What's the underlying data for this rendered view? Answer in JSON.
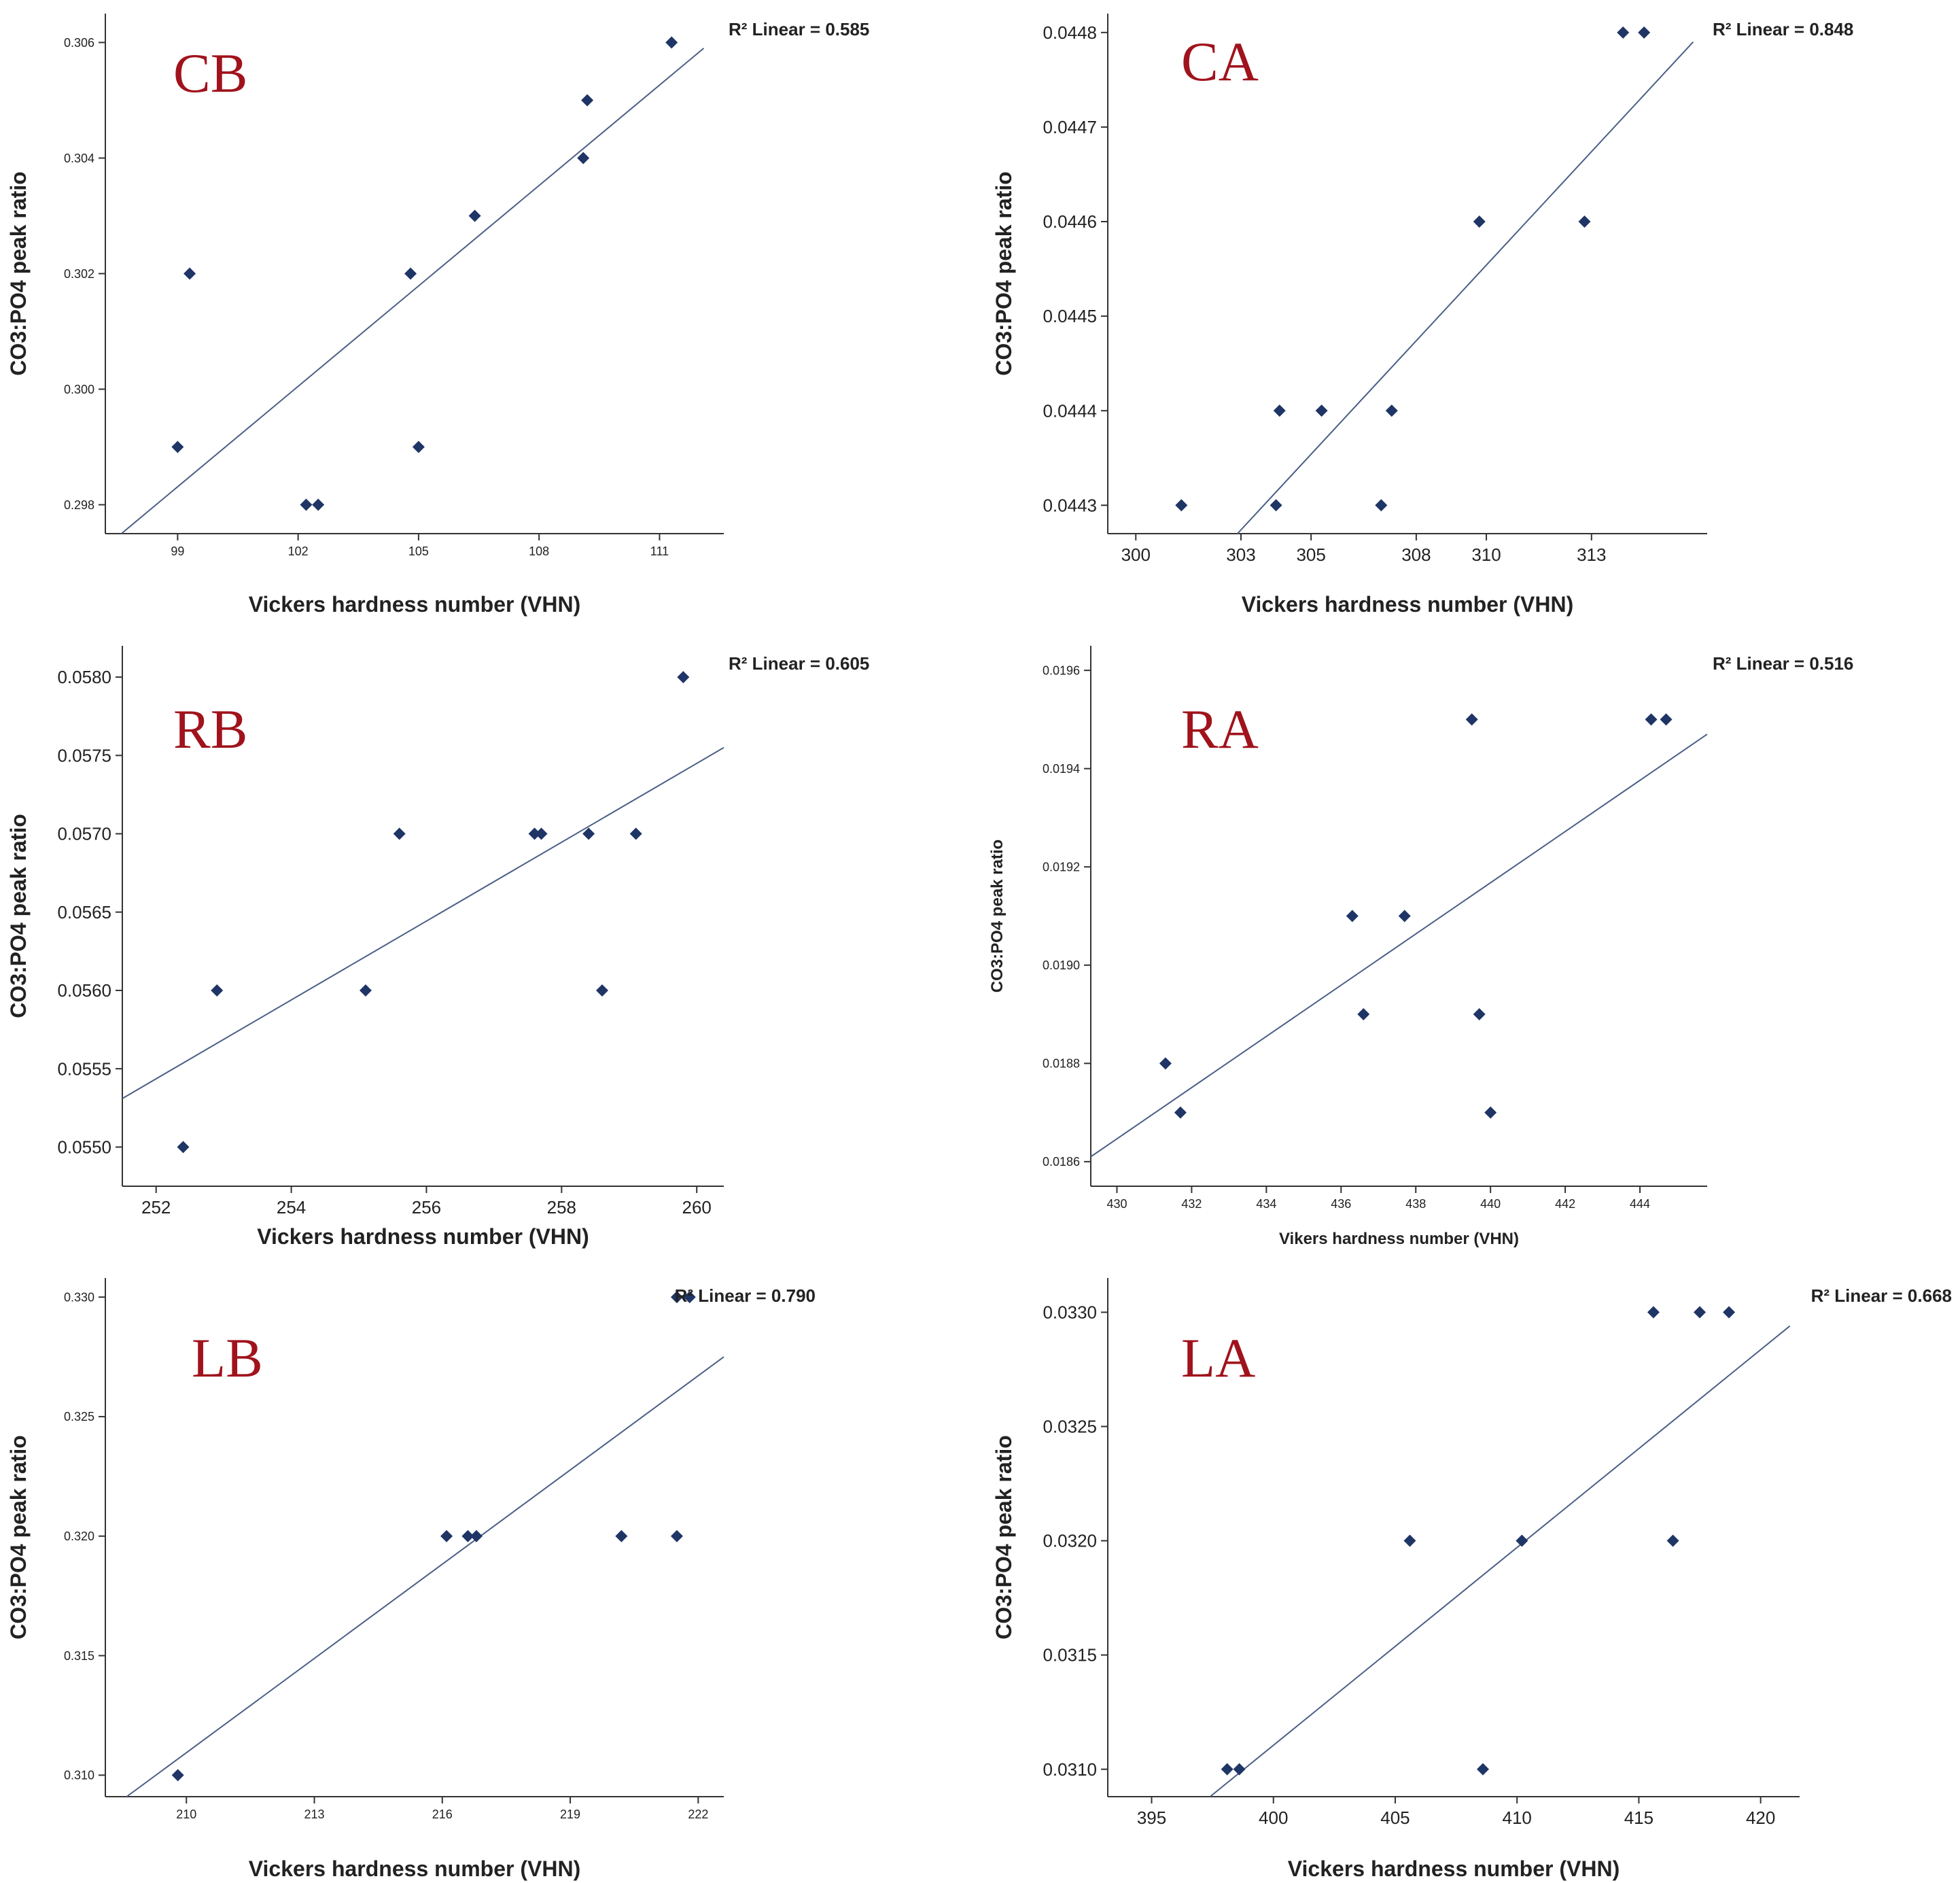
{
  "marker_color": "#1f3566",
  "line_color": "#4a5f86",
  "axis_color": "#333333",
  "panel_label_color": "#a0131c",
  "chart_data": [
    {
      "type": "scatter",
      "panel_label": "CB",
      "r2_text": "R² Linear = 0.585",
      "xlabel": "Vickers hardness number (VHN)",
      "ylabel": "CO3:PO4 peak ratio",
      "xlim": [
        97.2,
        112.6
      ],
      "ylim": [
        0.2975,
        0.3065
      ],
      "xticks": [
        99,
        102,
        105,
        108,
        111
      ],
      "yticks": [
        0.298,
        0.3,
        0.302,
        0.304,
        0.306
      ],
      "xtick_labels": [
        "99",
        "102",
        "105",
        "108",
        "111"
      ],
      "ytick_labels": [
        "0.298",
        "0.300",
        "0.302",
        "0.304",
        "0.306"
      ],
      "points": [
        [
          99.0,
          0.299
        ],
        [
          99.3,
          0.302
        ],
        [
          102.2,
          0.298
        ],
        [
          102.5,
          0.298
        ],
        [
          104.8,
          0.302
        ],
        [
          105.0,
          0.299
        ],
        [
          106.4,
          0.303
        ],
        [
          109.1,
          0.304
        ],
        [
          109.2,
          0.305
        ],
        [
          111.3,
          0.306
        ]
      ],
      "fit_line": [
        [
          97.6,
          0.2975
        ],
        [
          112.1,
          0.3059
        ]
      ]
    },
    {
      "type": "scatter",
      "panel_label": "CA",
      "r2_text": "R² Linear = 0.848",
      "xlabel": "Vickers hardness number (VHN)",
      "ylabel": "CO3:PO4 peak ratio",
      "xlim": [
        299.2,
        316.3
      ],
      "ylim": [
        0.04427,
        0.04482
      ],
      "xticks": [
        300,
        303,
        305,
        308,
        310,
        313
      ],
      "yticks": [
        0.0443,
        0.0444,
        0.0445,
        0.0446,
        0.0447,
        0.0448
      ],
      "xtick_labels": [
        "300",
        "303",
        "305",
        "308",
        "310",
        "313"
      ],
      "ytick_labels": [
        "0.0443",
        "0.0444",
        "0.0445",
        "0.0446",
        "0.0447",
        "0.0448"
      ],
      "points": [
        [
          301.3,
          0.0443
        ],
        [
          304.0,
          0.0443
        ],
        [
          304.1,
          0.0444
        ],
        [
          305.3,
          0.0444
        ],
        [
          307.0,
          0.0443
        ],
        [
          307.3,
          0.0444
        ],
        [
          309.8,
          0.0446
        ],
        [
          312.8,
          0.0446
        ],
        [
          313.9,
          0.0448
        ],
        [
          314.5,
          0.0448
        ]
      ],
      "fit_line": [
        [
          302.9,
          0.04427
        ],
        [
          315.9,
          0.04479
        ]
      ]
    },
    {
      "type": "scatter",
      "panel_label": "RB",
      "r2_text": "R² Linear = 0.605",
      "xlabel": "Vickers hardness number (VHN)",
      "ylabel": "CO3:PO4 peak ratio",
      "xlim": [
        251.5,
        260.4
      ],
      "ylim": [
        0.05475,
        0.0582
      ],
      "xticks": [
        252,
        254,
        256,
        258,
        260
      ],
      "yticks": [
        0.055,
        0.0555,
        0.056,
        0.0565,
        0.057,
        0.0575,
        0.058
      ],
      "xtick_labels": [
        "252",
        "254",
        "256",
        "258",
        "260"
      ],
      "ytick_labels": [
        "0.0550",
        "0.0555",
        "0.0560",
        "0.0565",
        "0.0570",
        "0.0575",
        "0.0580"
      ],
      "points": [
        [
          252.4,
          0.055
        ],
        [
          252.9,
          0.056
        ],
        [
          255.1,
          0.056
        ],
        [
          255.6,
          0.057
        ],
        [
          257.6,
          0.057
        ],
        [
          257.7,
          0.057
        ],
        [
          258.4,
          0.057
        ],
        [
          258.6,
          0.056
        ],
        [
          259.1,
          0.057
        ],
        [
          259.8,
          0.058
        ]
      ],
      "fit_line": [
        [
          251.5,
          0.05531
        ],
        [
          260.4,
          0.05755
        ]
      ]
    },
    {
      "type": "scatter",
      "panel_label": "RA",
      "r2_text": "R² Linear = 0.516",
      "xlabel": "Vikers hardness number (VHN)",
      "ylabel": "CO3:PO4 peak ratio",
      "xlim": [
        429.3,
        445.8
      ],
      "ylim": [
        0.01855,
        0.01965
      ],
      "xticks": [
        430,
        432,
        434,
        436,
        438,
        440,
        442,
        444
      ],
      "yticks": [
        0.0186,
        0.0188,
        0.019,
        0.0192,
        0.0194,
        0.0196
      ],
      "xtick_labels": [
        "430",
        "432",
        "434",
        "436",
        "438",
        "440",
        "442",
        "444"
      ],
      "ytick_labels": [
        "0.0186",
        "0.0188",
        "0.0190",
        "0.0192",
        "0.0194",
        "0.0196"
      ],
      "points": [
        [
          431.3,
          0.0188
        ],
        [
          431.7,
          0.0187
        ],
        [
          436.3,
          0.0191
        ],
        [
          436.6,
          0.0189
        ],
        [
          437.7,
          0.0191
        ],
        [
          439.5,
          0.0195
        ],
        [
          439.7,
          0.0189
        ],
        [
          440.0,
          0.0187
        ],
        [
          444.3,
          0.0195
        ],
        [
          444.7,
          0.0195
        ]
      ],
      "fit_line": [
        [
          429.3,
          0.01861
        ],
        [
          445.8,
          0.01947
        ]
      ]
    },
    {
      "type": "scatter",
      "panel_label": "LB",
      "r2_text": "R² Linear = 0.790",
      "xlabel": "Vickers hardness number (VHN)",
      "ylabel": "CO3:PO4 peak ratio",
      "xlim": [
        208.1,
        222.6
      ],
      "ylim": [
        0.3091,
        0.3308
      ],
      "xticks": [
        210,
        213,
        216,
        219,
        222
      ],
      "yticks": [
        0.31,
        0.315,
        0.32,
        0.325,
        0.33
      ],
      "xtick_labels": [
        "210",
        "213",
        "216",
        "219",
        "222"
      ],
      "ytick_labels": [
        "0.310",
        "0.315",
        "0.320",
        "0.325",
        "0.330"
      ],
      "points": [
        [
          209.8,
          0.31
        ],
        [
          216.1,
          0.32
        ],
        [
          216.6,
          0.32
        ],
        [
          216.8,
          0.32
        ],
        [
          220.2,
          0.32
        ],
        [
          221.5,
          0.32
        ],
        [
          221.5,
          0.33
        ],
        [
          221.8,
          0.33
        ]
      ],
      "fit_line": [
        [
          208.6,
          0.3091
        ],
        [
          222.6,
          0.3275
        ]
      ]
    },
    {
      "type": "scatter",
      "panel_label": "LA",
      "r2_text": "R² Linear = 0.668",
      "xlabel": "Vickers hardness number (VHN)",
      "ylabel": "CO3:PO4 peak ratio",
      "xlim": [
        393.2,
        421.6
      ],
      "ylim": [
        0.03088,
        0.03315
      ],
      "xticks": [
        395,
        400,
        405,
        410,
        415,
        420
      ],
      "yticks": [
        0.031,
        0.0315,
        0.032,
        0.0325,
        0.033
      ],
      "xtick_labels": [
        "395",
        "400",
        "405",
        "410",
        "415",
        "420"
      ],
      "ytick_labels": [
        "0.0310",
        "0.0315",
        "0.0320",
        "0.0325",
        "0.0330"
      ],
      "points": [
        [
          398.1,
          0.031
        ],
        [
          398.6,
          0.031
        ],
        [
          405.6,
          0.032
        ],
        [
          408.6,
          0.031
        ],
        [
          410.2,
          0.032
        ],
        [
          415.6,
          0.033
        ],
        [
          416.4,
          0.032
        ],
        [
          417.5,
          0.033
        ],
        [
          418.7,
          0.033
        ]
      ],
      "fit_line": [
        [
          397.4,
          0.03088
        ],
        [
          421.2,
          0.03294
        ]
      ]
    }
  ]
}
